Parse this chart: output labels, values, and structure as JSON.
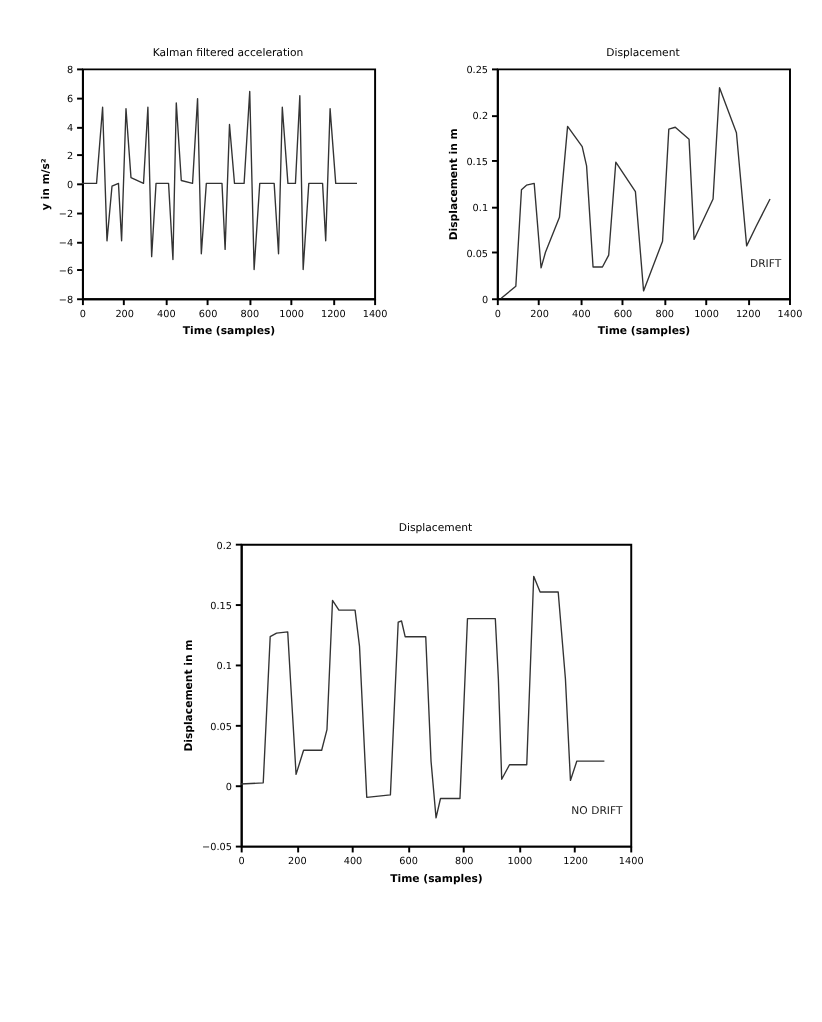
{
  "chart_data": [
    {
      "type": "line",
      "title": "Kalman filtered acceleration",
      "xlabel": "Time (samples)",
      "ylabel": "y in m/s²",
      "xlim": [
        0,
        1400
      ],
      "xticks": [
        0,
        200,
        400,
        600,
        800,
        1000,
        1200,
        1400
      ],
      "ylim": [
        -8,
        8
      ],
      "yticks": [
        -8,
        -6,
        -4,
        -2,
        0,
        2,
        4,
        6,
        8
      ],
      "grid": false,
      "series": [
        {
          "color": "#333333",
          "x": [
            0,
            70,
            99,
            120,
            144,
            175,
            190,
            211,
            235,
            295,
            316,
            334,
            355,
            415,
            436,
            452,
            476,
            530,
            554,
            572,
            596,
            671,
            686,
            707,
            731,
            777,
            804,
            825,
            852,
            921,
            942,
            960,
            987,
            1023,
            1044,
            1060,
            1087,
            1153,
            1168,
            1189,
            1216,
            1318
          ],
          "values": [
            0,
            0,
            5.3,
            -4.0,
            -0.2,
            0,
            -4.0,
            5.2,
            0.4,
            0,
            5.3,
            -5.1,
            0,
            0,
            -5.3,
            5.6,
            0.2,
            0,
            5.9,
            -4.9,
            0,
            0,
            -4.6,
            4.1,
            0,
            0,
            6.4,
            -6.0,
            0,
            0,
            -4.9,
            5.3,
            0,
            0,
            6.1,
            -6.0,
            0,
            0,
            -4.0,
            5.2,
            0,
            0
          ]
        }
      ]
    },
    {
      "type": "line",
      "title": "Displacement",
      "xlabel": "Time (samples)",
      "ylabel": "Displacement in m",
      "xlim": [
        0,
        1400
      ],
      "xticks": [
        0,
        200,
        400,
        600,
        800,
        1000,
        1200,
        1400
      ],
      "ylim": [
        0,
        0.25
      ],
      "yticks": [
        0,
        0.05,
        0.1,
        0.15,
        0.2,
        0.25
      ],
      "grid": false,
      "annotations": [
        "DRIFT"
      ],
      "series": [
        {
          "color": "#333333",
          "x": [
            21,
            91,
            118,
            142,
            179,
            212,
            233,
            300,
            339,
            409,
            430,
            461,
            506,
            536,
            570,
            664,
            703,
            794,
            824,
            855,
            921,
            945,
            1036,
            1067,
            1148,
            1197,
            1242,
            1309
          ],
          "values": [
            0,
            0.013,
            0.118,
            0.123,
            0.125,
            0.033,
            0.05,
            0.088,
            0.187,
            0.165,
            0.144,
            0.034,
            0.034,
            0.047,
            0.148,
            0.116,
            0.008,
            0.062,
            0.184,
            0.186,
            0.173,
            0.064,
            0.108,
            0.229,
            0.18,
            0.057,
            0.078,
            0.108
          ]
        }
      ]
    },
    {
      "type": "line",
      "title": "Displacement",
      "xlabel": "Time (samples)",
      "ylabel": "Displacement in m",
      "xlim": [
        0,
        1400
      ],
      "xticks": [
        0,
        200,
        400,
        600,
        800,
        1000,
        1200,
        1400
      ],
      "ylim": [
        -0.05,
        0.2
      ],
      "yticks": [
        -0.05,
        0,
        0.05,
        0.1,
        0.15,
        0.2
      ],
      "grid": false,
      "annotations": [
        "NO DRIFT"
      ],
      "series": [
        {
          "color": "#333333",
          "x": [
            0,
            81,
            106,
            129,
            169,
            180,
            199,
            226,
            291,
            310,
            330,
            353,
            411,
            427,
            453,
            538,
            566,
            578,
            591,
            665,
            684,
            702,
            718,
            788,
            815,
            915,
            926,
            938,
            966,
            1012,
            1028,
            1053,
            1076,
            1141,
            1167,
            1185,
            1208,
            1307
          ],
          "values": [
            0.001,
            0.002,
            0.123,
            0.126,
            0.127,
            0.083,
            0.009,
            0.029,
            0.029,
            0.046,
            0.153,
            0.145,
            0.145,
            0.115,
            -0.01,
            -0.008,
            0.135,
            0.136,
            0.123,
            0.123,
            0.02,
            -0.027,
            -0.011,
            -0.011,
            0.138,
            0.138,
            0.088,
            0.005,
            0.017,
            0.017,
            0.017,
            0.173,
            0.16,
            0.16,
            0.088,
            0.004,
            0.02,
            0.02
          ]
        }
      ]
    }
  ]
}
